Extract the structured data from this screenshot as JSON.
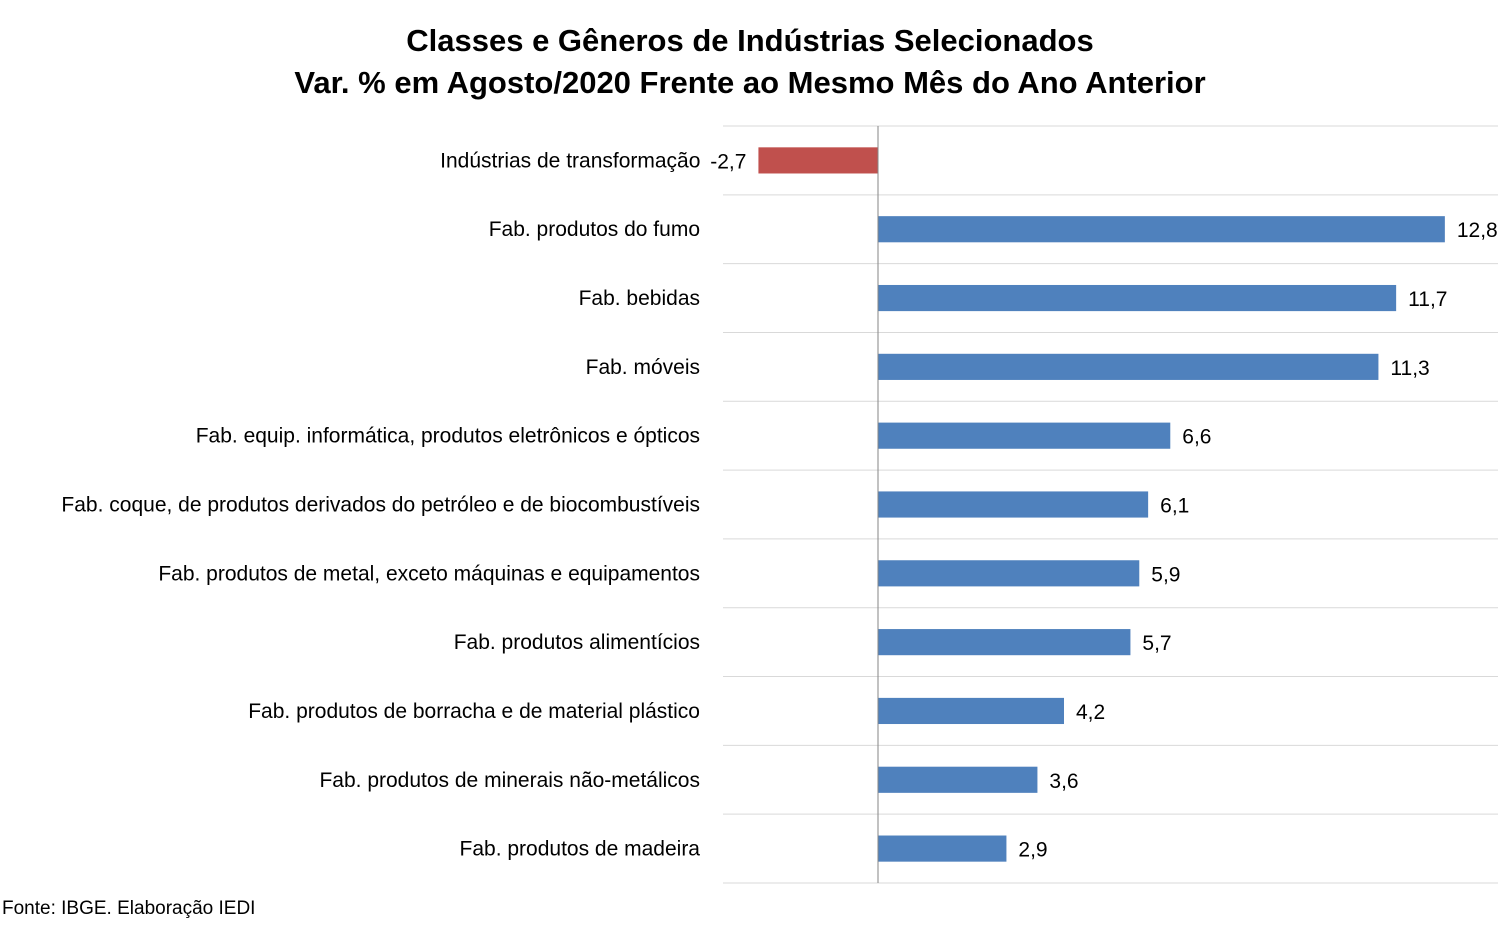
{
  "chart_data": {
    "type": "bar",
    "orientation": "horizontal",
    "title": "Classes e Gêneros de Indústrias Selecionados",
    "subtitle": "Var. % em Agosto/2020 Frente ao Mesmo Mês do Ano Anterior",
    "categories": [
      "Indústrias de transformação",
      "Fab. produtos do fumo",
      "Fab. bebidas",
      "Fab. móveis",
      "Fab. equip. informática, produtos eletrônicos e ópticos",
      "Fab. coque, de produtos derivados do petróleo e de biocombustíveis",
      "Fab. produtos de metal, exceto máquinas e equipamentos",
      "Fab. produtos alimentícios",
      "Fab. produtos de borracha e de material plástico",
      "Fab. produtos de minerais não-metálicos",
      "Fab. produtos de madeira"
    ],
    "values": [
      -2.7,
      12.8,
      11.7,
      11.3,
      6.6,
      6.1,
      5.9,
      5.7,
      4.2,
      3.6,
      2.9
    ],
    "data_labels": [
      "-2,7",
      "12,8",
      "11,7",
      "11,3",
      "6,6",
      "6,1",
      "5,9",
      "5,7",
      "4,2",
      "3,6",
      "2,9"
    ],
    "xlim": [
      -3.5,
      14
    ],
    "gridlines": "horizontal",
    "legend": "none",
    "colors": {
      "positive": "#4f81bd",
      "negative": "#c0504d",
      "grid": "#d9d9d9",
      "axis": "#868686"
    }
  },
  "source": "Fonte: IBGE. Elaboração IEDI"
}
